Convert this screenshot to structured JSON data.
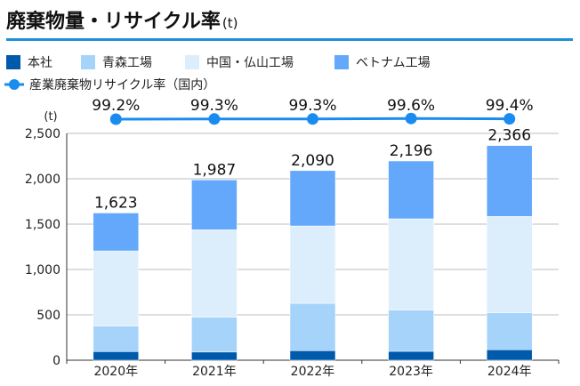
{
  "title": "廃棄物量・リサイクル率",
  "title_unit": "(t)",
  "colors": {
    "honsha": "#005aab",
    "aomori": "#a5d3fa",
    "chugoku": "#dcedfc",
    "vietnam": "#63a8fb",
    "recycle": "#1a8cf0",
    "accent": "#1e90d8"
  },
  "chart_data": {
    "type": "bar",
    "stacked": true,
    "categories": [
      "2020年",
      "2021年",
      "2022年",
      "2023年",
      "2024年"
    ],
    "series": [
      {
        "name": "本社",
        "values": [
          95,
          90,
          105,
          98,
          115
        ]
      },
      {
        "name": "青森工場",
        "values": [
          280,
          383,
          522,
          454,
          407
        ]
      },
      {
        "name": "中国・仏山工場",
        "values": [
          830,
          965,
          853,
          1007,
          1063
        ]
      },
      {
        "name": "ベトナム工場",
        "values": [
          418,
          549,
          610,
          637,
          781
        ]
      }
    ],
    "totals": [
      "1,623",
      "1,987",
      "2,090",
      "2,196",
      "2,366"
    ],
    "line": {
      "name": "産業廃棄物リサイクル率（国内）",
      "values": [
        99.2,
        99.3,
        99.3,
        99.6,
        99.4
      ],
      "labels": [
        "99.2%",
        "99.3%",
        "99.3%",
        "99.6%",
        "99.4%"
      ]
    },
    "ylabel": "(t)",
    "ylim": [
      0,
      2500
    ],
    "yticks": [
      "0",
      "500",
      "1,000",
      "1,500",
      "2,000",
      "2,500"
    ],
    "grid": true,
    "legend": "top"
  }
}
